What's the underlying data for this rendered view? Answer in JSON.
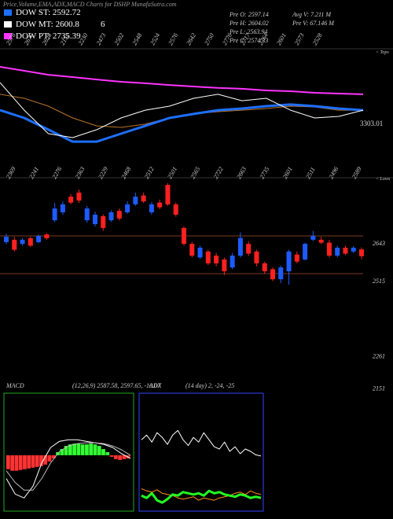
{
  "title": "Price,Volume,EMA,ADX,MACD Charts for DSHP MunafaSutra.com",
  "legend": [
    {
      "label": "DOW ST: 2592.72",
      "color": "#1e6fff"
    },
    {
      "label": "DOW MT: 2600.8",
      "color": "#ffffff"
    },
    {
      "label": "DOW PT: 2735.39",
      "color": "#ff33ff"
    }
  ],
  "legend_extra": "6",
  "info": [
    "Pre O: 2597.14",
    "Pre H: 2604.02",
    "Pre L: 2563.94",
    "Pre C: 2574.33",
    "Avg V: 7.211 M",
    "Pre V: 67.146 M"
  ],
  "chart_data": [
    {
      "type": "line",
      "ylim": [
        2100,
        2900
      ],
      "tops": [
        "2578",
        "2670",
        "2628",
        "2152",
        "2230",
        "2473",
        "2502",
        "2548",
        "2524",
        "2576",
        "2642",
        "2750",
        "2776",
        "2717",
        "2764",
        "2601",
        "2573",
        "2528"
      ],
      "tops_label": "< Tops",
      "level_label": "3303.01",
      "series": [
        {
          "color": "#ff33ff",
          "line_width": 2,
          "values": [
            2777,
            2746,
            2715,
            2697,
            2678,
            2660,
            2648,
            2635,
            2623,
            2612,
            2605,
            2592,
            2586,
            2574,
            2568,
            2562
          ]
        },
        {
          "color": "#b8732a",
          "line_width": 1,
          "values": [
            2562,
            2531,
            2469,
            2377,
            2315,
            2303,
            2328,
            2377,
            2408,
            2426,
            2438,
            2451,
            2469,
            2463,
            2438,
            2438
          ]
        },
        {
          "color": "#1e6fff",
          "line_width": 3,
          "values": [
            2438,
            2377,
            2285,
            2192,
            2192,
            2254,
            2315,
            2377,
            2408,
            2438,
            2451,
            2469,
            2482,
            2469,
            2451,
            2438
          ]
        },
        {
          "color": "#ffffff",
          "line_width": 1,
          "values": [
            2654,
            2438,
            2254,
            2223,
            2285,
            2377,
            2438,
            2469,
            2531,
            2562,
            2512,
            2531,
            2438,
            2377,
            2389,
            2438
          ]
        }
      ]
    },
    {
      "type": "candlestick",
      "ylim": [
        2123,
        2843
      ],
      "yticks": [
        2643,
        2515,
        2261,
        2151
      ],
      "lows": [
        "2369",
        "2241",
        "2276",
        "2363",
        "2229",
        "2468",
        "2512",
        "2501",
        "2565",
        "2722",
        "2663",
        "2735",
        "2601",
        "2511",
        "2496",
        "2589"
      ],
      "lows_label": "< Lows",
      "up_color": "#1e5bff",
      "down_color": "#ff2020",
      "open": [
        2622,
        2630,
        2616,
        2635,
        2622,
        2648,
        2696,
        2723,
        2776,
        2790,
        2696,
        2683,
        2710,
        2696,
        2728,
        2723,
        2750,
        2780,
        2723,
        2756,
        2816,
        2750,
        2670,
        2616,
        2570,
        2590,
        2576,
        2563,
        2536,
        2576,
        2616,
        2590,
        2550,
        2530,
        2496,
        2523,
        2580,
        2563,
        2630,
        2630,
        2620,
        2576,
        2603,
        2590,
        2597.14
      ],
      "high": [
        2650,
        2640,
        2636,
        2640,
        2648,
        2652,
        2755,
        2760,
        2785,
        2800,
        2745,
        2725,
        2716,
        2730,
        2736,
        2760,
        2790,
        2790,
        2758,
        2766,
        2822,
        2756,
        2675,
        2622,
        2610,
        2596,
        2585,
        2570,
        2585,
        2655,
        2625,
        2596,
        2556,
        2536,
        2543,
        2596,
        2590,
        2620,
        2660,
        2640,
        2630,
        2610,
        2610,
        2608,
        2604.02
      ],
      "low": [
        2615,
        2590,
        2610,
        2605,
        2618,
        2630,
        2690,
        2715,
        2750,
        2755,
        2688,
        2675,
        2660,
        2690,
        2695,
        2718,
        2745,
        2755,
        2715,
        2734,
        2745,
        2708,
        2610,
        2570,
        2565,
        2544,
        2540,
        2510,
        2530,
        2570,
        2575,
        2540,
        2515,
        2490,
        2483,
        2478,
        2550,
        2560,
        2625,
        2615,
        2570,
        2570,
        2578,
        2585,
        2563.94
      ],
      "close": [
        2640,
        2596,
        2630,
        2610,
        2643,
        2635,
        2736,
        2750,
        2756,
        2763,
        2736,
        2715,
        2670,
        2723,
        2702,
        2750,
        2776,
        2760,
        2750,
        2740,
        2750,
        2715,
        2616,
        2576,
        2603,
        2550,
        2550,
        2523,
        2576,
        2636,
        2583,
        2550,
        2523,
        2496,
        2536,
        2590,
        2556,
        2616,
        2643,
        2620,
        2576,
        2603,
        2583,
        2603,
        2574.33
      ]
    },
    {
      "type": "macd",
      "title": "MACD",
      "subtitle": "(12,26,9) 2587.58, 2597.65, -10.07",
      "ylim": [
        -70,
        80
      ],
      "up_color": "#33ff33",
      "down_color": "#ff3333",
      "histogram": [
        -18,
        -20,
        -20,
        -19,
        -18,
        -17,
        -16,
        -15,
        -14,
        -12,
        -8,
        -4,
        4,
        8,
        12,
        14,
        15,
        15,
        14,
        14,
        15,
        14,
        12,
        8,
        4,
        -2,
        -5,
        -6,
        -5,
        -4
      ],
      "series": [
        {
          "color": "#ffffff",
          "values": [
            -30,
            -50,
            -55,
            -40,
            -10,
            10,
            18,
            20,
            20,
            18,
            16,
            14,
            10,
            2,
            -4
          ]
        },
        {
          "color": "#bbbbbb",
          "values": [
            -20,
            -35,
            -45,
            -45,
            -30,
            -10,
            5,
            12,
            15,
            16,
            16,
            15,
            12,
            7,
            0
          ]
        }
      ]
    },
    {
      "type": "adx",
      "title": "ADX",
      "subtitle": "(14 day) 2, -24, -25",
      "ylim": [
        0,
        100
      ],
      "series": [
        {
          "color": "#ffffff",
          "line_width": 1,
          "values": [
            60,
            64,
            58,
            66,
            62,
            56,
            64,
            68,
            60,
            55,
            62,
            58,
            66,
            60,
            54,
            52,
            58,
            50,
            54,
            48,
            52,
            50,
            47,
            46
          ]
        },
        {
          "color": "#ff8c1a",
          "line_width": 1,
          "values": [
            18,
            16,
            15,
            17,
            14,
            13,
            12,
            10,
            9,
            10,
            11,
            8,
            10,
            9,
            8,
            10,
            11,
            12,
            14,
            15,
            13,
            16,
            14,
            13
          ]
        },
        {
          "color": "#22ff22",
          "line_width": 3,
          "values": [
            12,
            10,
            14,
            8,
            6,
            9,
            13,
            12,
            15,
            14,
            13,
            14,
            12,
            16,
            14,
            15,
            13,
            12,
            11,
            13,
            12,
            10,
            11,
            10
          ]
        }
      ]
    }
  ]
}
